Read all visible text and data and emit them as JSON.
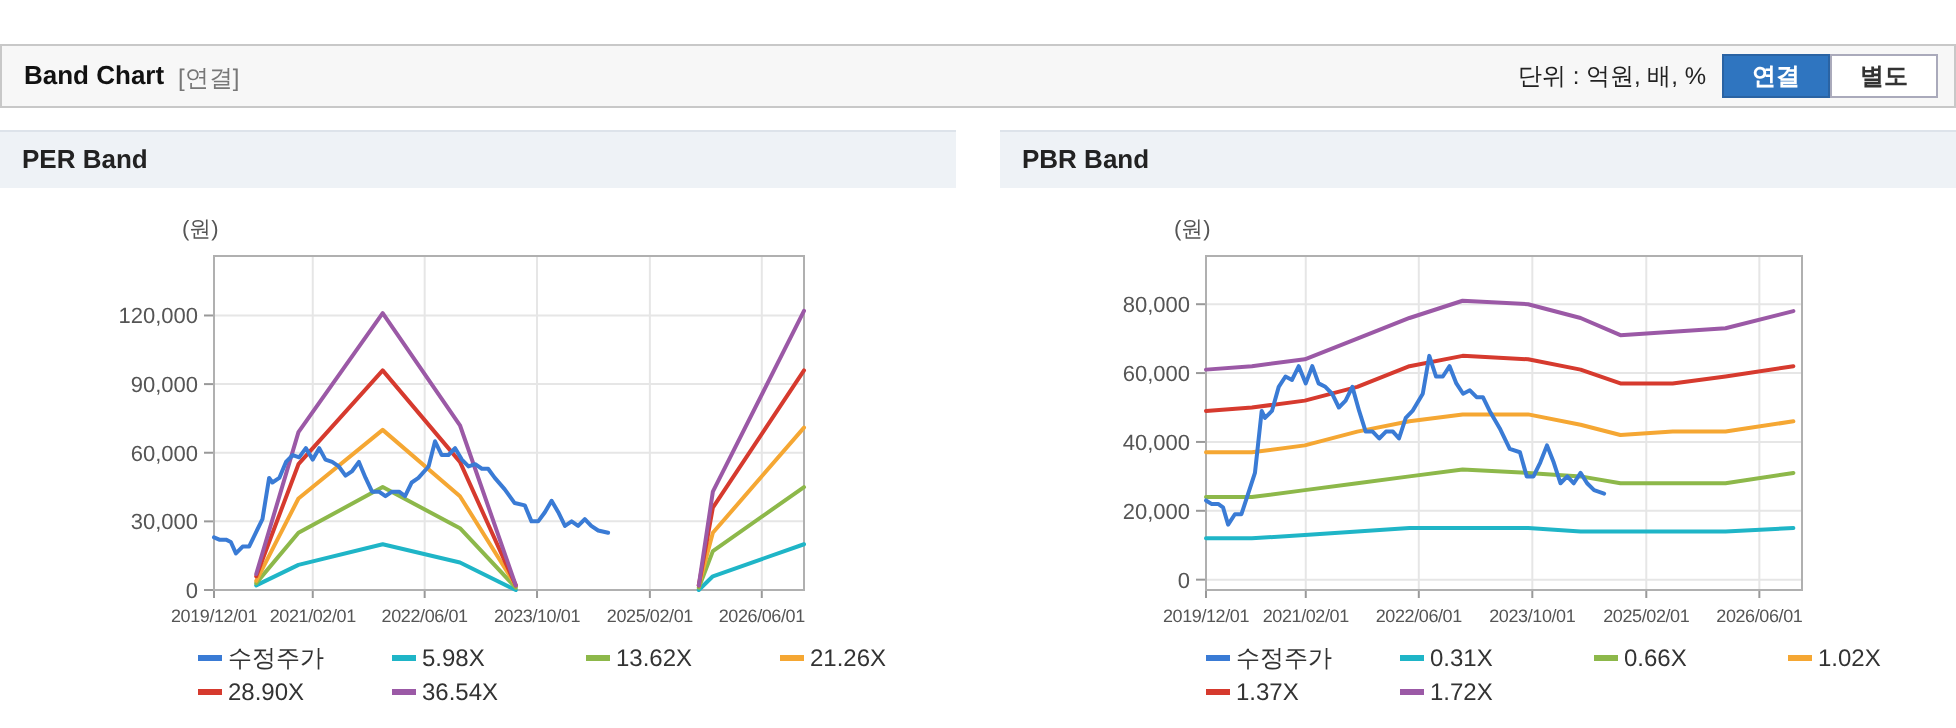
{
  "chart_data": [
    {
      "type": "other",
      "title": "Band Chart",
      "annotations": [
        "[연결]",
        "단위 : 억원, 배, %",
        "연결",
        "별도"
      ]
    },
    {
      "type": "line",
      "title": "PER Band",
      "ylabel": "(원)",
      "grid": true,
      "legend": "bottom",
      "marker": "none",
      "line_style": "solid",
      "xlim": [
        "2019-12-01",
        "2026-12-01"
      ],
      "xticks": [
        {
          "value": "2019-12-01",
          "label": "2019/12/01"
        },
        {
          "value": "2021-02-01",
          "label": "2021/02/01"
        },
        {
          "value": "2022-06-01",
          "label": "2022/06/01"
        },
        {
          "value": "2023-10-01",
          "label": "2023/10/01"
        },
        {
          "value": "2025-02-01",
          "label": "2025/02/01"
        },
        {
          "value": "2026-06-01",
          "label": "2026/06/01"
        }
      ],
      "ylim": [
        0,
        146000
      ],
      "yticks": [
        0,
        {
          "value": 30000,
          "label": "30,000"
        },
        {
          "value": 60000,
          "label": "60,000"
        },
        {
          "value": 90000,
          "label": "90,000"
        },
        {
          "value": 120000,
          "label": "120,000"
        }
      ],
      "series": [
        {
          "name": "수정주가",
          "color": "#3a7bd5",
          "x": [
            "2019-12-01",
            "2019-12-24",
            "2020-01-22",
            "2020-02-12",
            "2020-03-05",
            "2020-04-03",
            "2020-05-01",
            "2020-05-30",
            "2020-06-28",
            "2020-07-27",
            "2020-08-10",
            "2020-09-09",
            "2020-10-08",
            "2020-11-06",
            "2020-12-04",
            "2021-01-02",
            "2021-02-01",
            "2021-03-01",
            "2021-03-28",
            "2021-04-26",
            "2021-05-25",
            "2021-06-23",
            "2021-07-22",
            "2021-08-20",
            "2021-09-18",
            "2021-10-16",
            "2021-11-15",
            "2021-12-13",
            "2022-01-11",
            "2022-02-10",
            "2022-03-08",
            "2022-04-06",
            "2022-05-05",
            "2022-06-18",
            "2022-07-16",
            "2022-08-14",
            "2022-09-12",
            "2022-10-11",
            "2022-11-09",
            "2022-12-08",
            "2023-01-06",
            "2023-02-04",
            "2023-03-03",
            "2023-04-01",
            "2023-05-14",
            "2023-06-26",
            "2023-08-09",
            "2023-09-07",
            "2023-10-06",
            "2023-11-04",
            "2023-12-03",
            "2024-01-01",
            "2024-01-30",
            "2024-02-28",
            "2024-03-27",
            "2024-04-25",
            "2024-05-23",
            "2024-06-22",
            "2024-08-04"
          ],
          "values": [
            23000,
            22000,
            22000,
            21000,
            16000,
            19000,
            19000,
            25000,
            31000,
            49000,
            47000,
            49000,
            56000,
            59000,
            58000,
            62000,
            57000,
            62000,
            57000,
            56000,
            54000,
            50000,
            52000,
            56000,
            49000,
            43000,
            43000,
            41000,
            43000,
            43000,
            41000,
            47000,
            49000,
            54000,
            65000,
            59000,
            59000,
            62000,
            57000,
            54000,
            55000,
            53000,
            53000,
            49000,
            44000,
            38000,
            37000,
            30000,
            30000,
            34000,
            39000,
            34000,
            28000,
            30000,
            28000,
            31000,
            28000,
            26000,
            25000
          ]
        },
        {
          "name": "5.98X",
          "color": "#1fb5c7",
          "x": [
            "2020-06-01",
            "2020-12-01",
            "2021-12-01",
            "2022-11-01",
            "2023-07-01"
          ],
          "values": [
            2000,
            11000,
            20000,
            12000,
            0
          ]
        },
        {
          "name": "13.62X",
          "color": "#8db84a",
          "x": [
            "2020-06-01",
            "2020-12-01",
            "2021-12-01",
            "2022-11-01",
            "2023-07-01"
          ],
          "values": [
            3000,
            25000,
            45000,
            27000,
            1000
          ]
        },
        {
          "name": "21.26X",
          "color": "#f5a733",
          "x": [
            "2020-06-01",
            "2020-12-01",
            "2021-12-01",
            "2022-11-01",
            "2023-07-01"
          ],
          "values": [
            4000,
            40000,
            70000,
            41000,
            2000
          ]
        },
        {
          "name": "28.90X",
          "color": "#d63a2e",
          "x": [
            "2020-06-01",
            "2020-12-01",
            "2021-12-01",
            "2022-11-01",
            "2023-07-01"
          ],
          "values": [
            6000,
            55000,
            96000,
            56000,
            2000
          ]
        },
        {
          "name": "36.54X",
          "color": "#9b59a6",
          "x": [
            "2020-06-01",
            "2020-12-01",
            "2021-12-01",
            "2022-11-01",
            "2023-07-01"
          ],
          "values": [
            7000,
            69000,
            121000,
            72000,
            2000
          ]
        },
        {
          "color": "#1fb5c7",
          "x": [
            "2025-09-01",
            "2025-11-01",
            "2026-12-01"
          ],
          "values": [
            0,
            6000,
            20000
          ]
        },
        {
          "color": "#8db84a",
          "x": [
            "2025-09-01",
            "2025-11-01",
            "2026-12-01"
          ],
          "values": [
            1000,
            17000,
            45000
          ]
        },
        {
          "color": "#f5a733",
          "x": [
            "2025-09-01",
            "2025-11-01",
            "2026-12-01"
          ],
          "values": [
            2000,
            25000,
            71000
          ]
        },
        {
          "color": "#d63a2e",
          "x": [
            "2025-09-01",
            "2025-11-01",
            "2026-12-01"
          ],
          "values": [
            2000,
            36000,
            96000
          ]
        },
        {
          "color": "#9b59a6",
          "x": [
            "2025-09-01",
            "2025-11-01",
            "2026-12-01"
          ],
          "values": [
            2000,
            43000,
            122000
          ]
        }
      ]
    },
    {
      "type": "line",
      "title": "PBR Band",
      "ylabel": "(원)",
      "grid": true,
      "legend": "bottom",
      "marker": "none",
      "line_style": "solid",
      "xlim": [
        "2019-12-01",
        "2026-12-01"
      ],
      "xticks": [
        {
          "value": "2019-12-01",
          "label": "2019/12/01"
        },
        {
          "value": "2021-02-01",
          "label": "2021/02/01"
        },
        {
          "value": "2022-06-01",
          "label": "2022/06/01"
        },
        {
          "value": "2023-10-01",
          "label": "2023/10/01"
        },
        {
          "value": "2025-02-01",
          "label": "2025/02/01"
        },
        {
          "value": "2026-06-01",
          "label": "2026/06/01"
        }
      ],
      "ylim": [
        -3000,
        94000
      ],
      "yticks": [
        0,
        {
          "value": 20000,
          "label": "20,000"
        },
        {
          "value": 40000,
          "label": "40,000"
        },
        {
          "value": 60000,
          "label": "60,000"
        },
        {
          "value": 80000,
          "label": "80,000"
        }
      ],
      "series": [
        {
          "name": "수정주가",
          "color": "#3a7bd5",
          "x": [
            "2019-12-01",
            "2019-12-24",
            "2020-01-22",
            "2020-02-12",
            "2020-03-05",
            "2020-04-03",
            "2020-05-01",
            "2020-05-30",
            "2020-06-28",
            "2020-07-27",
            "2020-08-10",
            "2020-09-09",
            "2020-10-08",
            "2020-11-06",
            "2020-12-04",
            "2021-01-02",
            "2021-02-01",
            "2021-03-01",
            "2021-03-28",
            "2021-04-26",
            "2021-05-25",
            "2021-06-23",
            "2021-07-22",
            "2021-08-20",
            "2021-09-18",
            "2021-10-16",
            "2021-11-15",
            "2021-12-13",
            "2022-01-11",
            "2022-02-10",
            "2022-03-08",
            "2022-04-06",
            "2022-05-05",
            "2022-06-18",
            "2022-07-16",
            "2022-08-14",
            "2022-09-12",
            "2022-10-11",
            "2022-11-09",
            "2022-12-08",
            "2023-01-06",
            "2023-02-04",
            "2023-03-03",
            "2023-04-01",
            "2023-05-14",
            "2023-06-26",
            "2023-08-09",
            "2023-09-07",
            "2023-10-06",
            "2023-11-04",
            "2023-12-03",
            "2024-01-01",
            "2024-01-30",
            "2024-02-28",
            "2024-03-27",
            "2024-04-25",
            "2024-05-23",
            "2024-06-22",
            "2024-08-04"
          ],
          "values": [
            23000,
            22000,
            22000,
            21000,
            16000,
            19000,
            19000,
            25000,
            31000,
            49000,
            47000,
            49000,
            56000,
            59000,
            58000,
            62000,
            57000,
            62000,
            57000,
            56000,
            54000,
            50000,
            52000,
            56000,
            49000,
            43000,
            43000,
            41000,
            43000,
            43000,
            41000,
            47000,
            49000,
            54000,
            65000,
            59000,
            59000,
            62000,
            57000,
            54000,
            55000,
            53000,
            53000,
            49000,
            44000,
            38000,
            37000,
            30000,
            30000,
            34000,
            39000,
            34000,
            28000,
            30000,
            28000,
            31000,
            28000,
            26000,
            25000
          ]
        },
        {
          "name": "0.31X",
          "color": "#1fb5c7",
          "x": [
            "2019-12-01",
            "2020-06-15",
            "2021-01-28",
            "2021-09-10",
            "2022-04-22",
            "2022-12-06",
            "2023-09-13",
            "2024-04-25",
            "2024-10-13",
            "2025-05-25",
            "2026-01-07",
            "2026-10-25"
          ],
          "values": [
            12000,
            12000,
            13000,
            14000,
            15000,
            15000,
            15000,
            14000,
            14000,
            14000,
            14000,
            15000
          ]
        },
        {
          "name": "0.66X",
          "color": "#8db84a",
          "x": [
            "2019-12-01",
            "2020-06-15",
            "2021-01-28",
            "2021-09-10",
            "2022-04-22",
            "2022-12-06",
            "2023-09-13",
            "2024-04-25",
            "2024-10-13",
            "2025-05-25",
            "2026-01-07",
            "2026-10-25"
          ],
          "values": [
            24000,
            24000,
            26000,
            28000,
            30000,
            32000,
            31000,
            30000,
            28000,
            28000,
            28000,
            31000
          ]
        },
        {
          "name": "1.02X",
          "color": "#f5a733",
          "x": [
            "2019-12-01",
            "2020-06-15",
            "2021-01-28",
            "2021-09-10",
            "2022-04-22",
            "2022-12-06",
            "2023-09-13",
            "2024-04-25",
            "2024-10-13",
            "2025-05-25",
            "2026-01-07",
            "2026-10-25"
          ],
          "values": [
            37000,
            37000,
            39000,
            43000,
            46000,
            48000,
            48000,
            45000,
            42000,
            43000,
            43000,
            46000
          ]
        },
        {
          "name": "1.37X",
          "color": "#d63a2e",
          "x": [
            "2019-12-01",
            "2020-06-15",
            "2021-01-28",
            "2021-09-10",
            "2022-04-22",
            "2022-12-06",
            "2023-09-13",
            "2024-04-25",
            "2024-10-13",
            "2025-05-25",
            "2026-01-07",
            "2026-10-25"
          ],
          "values": [
            49000,
            50000,
            52000,
            56000,
            62000,
            65000,
            64000,
            61000,
            57000,
            57000,
            59000,
            62000
          ]
        },
        {
          "name": "1.72X",
          "color": "#9b59a6",
          "x": [
            "2019-12-01",
            "2020-06-15",
            "2021-01-28",
            "2021-09-10",
            "2022-04-22",
            "2022-12-06",
            "2023-09-13",
            "2024-04-25",
            "2024-10-13",
            "2025-05-25",
            "2026-01-07",
            "2026-10-25"
          ],
          "values": [
            61000,
            62000,
            64000,
            70000,
            76000,
            81000,
            80000,
            76000,
            71000,
            72000,
            73000,
            78000
          ]
        }
      ]
    }
  ]
}
